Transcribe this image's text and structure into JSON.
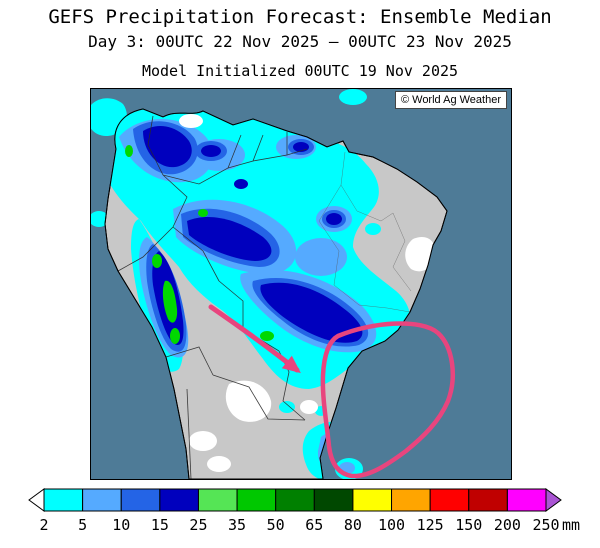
{
  "title": {
    "line1": "GEFS Precipitation Forecast: Ensemble Median",
    "line2": "Day 3: 00UTC 22 Nov 2025 – 00UTC 23 Nov 2025",
    "line3": "Model Initialized 00UTC 19 Nov 2025"
  },
  "map": {
    "copyright": "© World Ag Weather",
    "ocean_color": "#4e7b97",
    "land_color": "#c8c8c8",
    "border_color": "#2b2b2b",
    "annotation_color": "#e8457e"
  },
  "legend": {
    "unit": "mm",
    "boundaries": [
      "2",
      "5",
      "10",
      "15",
      "25",
      "35",
      "50",
      "65",
      "80",
      "100",
      "125",
      "150",
      "200",
      "250"
    ],
    "segment_colors": [
      "#00ffff",
      "#55aaff",
      "#2464e6",
      "#0000be",
      "#55e555",
      "#00c800",
      "#008000",
      "#004800",
      "#ffff00",
      "#ffa500",
      "#ff0000",
      "#c00000",
      "#ff00ff"
    ],
    "below_min_color": "#ffffff",
    "above_max_color": "#aa55d4"
  }
}
